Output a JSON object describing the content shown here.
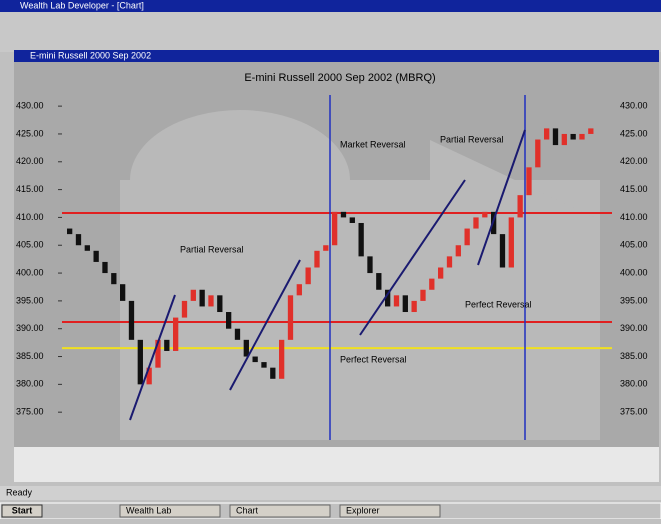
{
  "app_title": "Wealth Lab Developer - [Chart]",
  "chart_window_title": "E-mini Russell 2000 Sep 2002",
  "chart_data": {
    "type": "candlestick",
    "title": "E-mini Russell 2000 Sep 2002 (MBRQ)",
    "open": [
      408,
      407,
      405,
      404,
      402,
      400,
      398,
      395,
      388,
      380,
      383,
      388,
      386,
      392,
      395,
      397,
      394,
      396,
      393,
      390,
      388,
      385,
      384,
      383,
      381,
      388,
      396,
      398,
      401,
      404,
      405,
      411,
      410,
      409,
      403,
      400,
      397,
      394,
      396,
      393,
      395,
      397,
      399,
      401,
      403,
      405,
      408,
      410,
      411,
      407,
      401,
      410,
      414,
      419,
      424,
      426,
      423,
      425,
      424,
      425
    ],
    "close": [
      407,
      405,
      404,
      402,
      400,
      398,
      395,
      388,
      380,
      383,
      388,
      386,
      392,
      395,
      397,
      394,
      396,
      393,
      390,
      388,
      385,
      384,
      383,
      381,
      388,
      396,
      398,
      401,
      404,
      405,
      411,
      410,
      409,
      403,
      400,
      397,
      394,
      396,
      393,
      395,
      397,
      399,
      401,
      403,
      405,
      408,
      410,
      411,
      407,
      401,
      410,
      414,
      419,
      424,
      426,
      423,
      425,
      424,
      425,
      426
    ],
    "up_color": "#e0302a",
    "down_color": "#111111",
    "ylim": [
      370,
      432
    ],
    "yticks": [
      {
        "value": 430,
        "label": "430.00"
      },
      {
        "value": 425,
        "label": "425.00"
      },
      {
        "value": 420,
        "label": "420.00"
      },
      {
        "value": 415,
        "label": "415.00"
      },
      {
        "value": 410,
        "label": "410.00"
      },
      {
        "value": 405,
        "label": "405.00"
      },
      {
        "value": 400,
        "label": "400.00"
      },
      {
        "value": 395,
        "label": "395.00"
      },
      {
        "value": 390,
        "label": "390.00"
      },
      {
        "value": 385,
        "label": "385.00"
      },
      {
        "value": 380,
        "label": "380.00"
      },
      {
        "value": 375,
        "label": "375.00"
      }
    ],
    "levels": [
      {
        "value": 410.8,
        "color": "#e02020"
      },
      {
        "value": 391.2,
        "color": "#e02020"
      },
      {
        "value": 386.5,
        "color": "#f0e020"
      }
    ]
  },
  "annotations": [
    "Market Reversal",
    "Partial Reversal",
    "Perfect Reversal",
    "Partial Reversal",
    "Perfect Reversal"
  ],
  "status_bar": "Ready",
  "taskbar": {
    "start": "Start",
    "items": [
      "Wealth Lab",
      "Chart",
      "Explorer"
    ]
  }
}
